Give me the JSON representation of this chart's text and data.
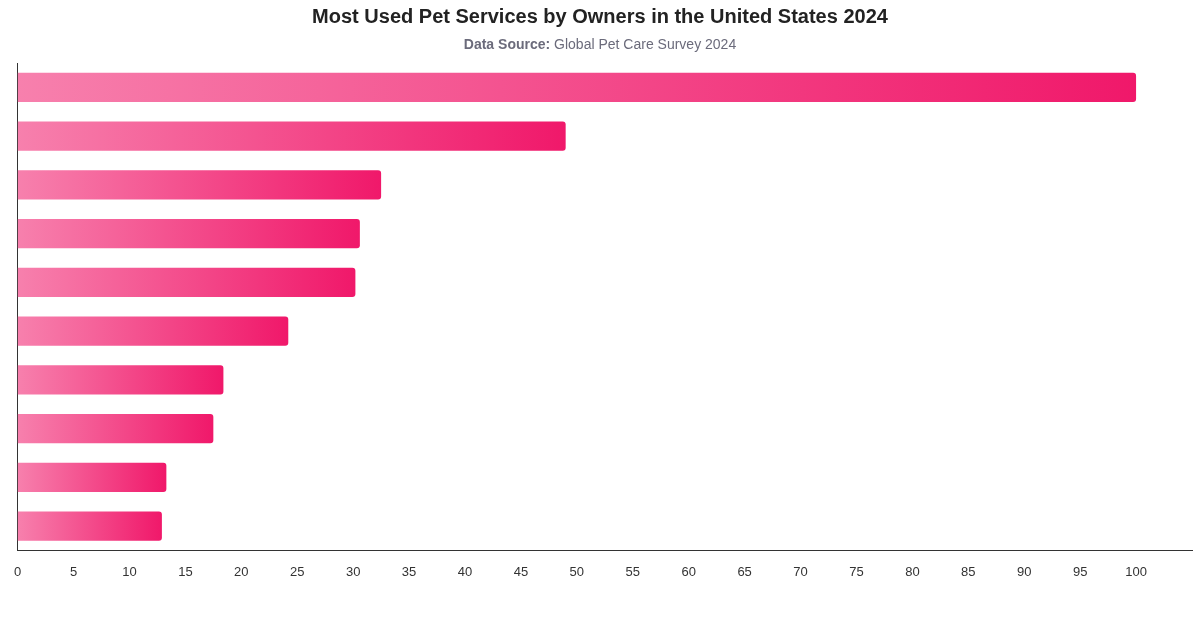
{
  "chart_data": {
    "type": "bar",
    "orientation": "horizontal",
    "title": "Most Used Pet Services by Owners in the United States 2024",
    "subtitle": "Data Source: Global Pet Care Survey 2024",
    "categories": [
      null,
      null,
      null,
      null,
      null,
      null,
      null,
      null,
      null,
      null
    ],
    "values": [
      100,
      49,
      32.5,
      30.6,
      30.2,
      24.2,
      18.4,
      17.5,
      13.3,
      12.9
    ],
    "color": "#f0186a",
    "xlim": [
      0,
      105
    ],
    "xticks": [
      0,
      5,
      10,
      15,
      20,
      25,
      30,
      35,
      40,
      45,
      50,
      55,
      60,
      65,
      70,
      75,
      80,
      85,
      90,
      95,
      100
    ]
  }
}
